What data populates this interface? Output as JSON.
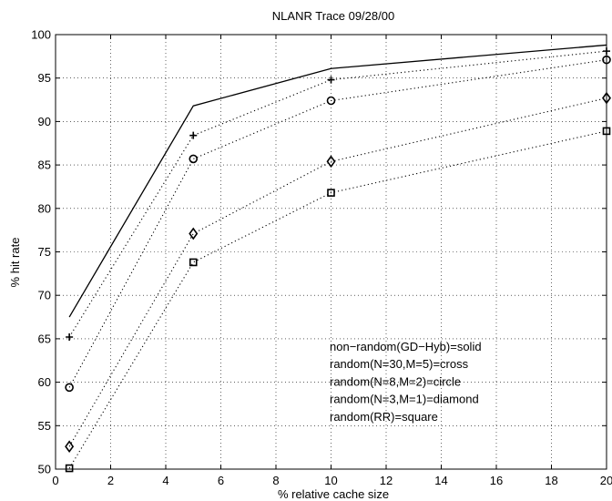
{
  "chart_data": {
    "type": "line",
    "title": "NLANR Trace 09/28/00",
    "xlabel": "% relative cache size",
    "ylabel": "% hit rate",
    "xlim": [
      0,
      20
    ],
    "ylim": [
      50,
      100
    ],
    "xticks": [
      0,
      2,
      4,
      6,
      8,
      10,
      12,
      14,
      16,
      18,
      20
    ],
    "yticks": [
      50,
      55,
      60,
      65,
      70,
      75,
      80,
      85,
      90,
      95,
      100
    ],
    "grid": true,
    "legend_position": "lower-right",
    "legend": [
      "non−random(GD−Hyb)=solid",
      "random(N=30,M=5)=cross",
      "random(N=8,M=2)=circle",
      "random(N=3,M=1)=diamond",
      "random(RR)=square"
    ],
    "x": [
      0.5,
      5,
      10,
      20
    ],
    "series": [
      {
        "style": "solid",
        "marker": "none",
        "values": [
          67.5,
          91.8,
          96.1,
          98.8
        ]
      },
      {
        "style": "dotted",
        "marker": "cross",
        "values": [
          65.2,
          88.4,
          94.8,
          98.1
        ]
      },
      {
        "style": "dotted",
        "marker": "circle",
        "values": [
          59.4,
          85.7,
          92.4,
          97.1
        ]
      },
      {
        "style": "dotted",
        "marker": "diamond",
        "values": [
          52.6,
          77.1,
          85.4,
          92.7
        ]
      },
      {
        "style": "dotted",
        "marker": "square",
        "values": [
          50.1,
          73.8,
          81.8,
          88.9
        ]
      }
    ]
  }
}
